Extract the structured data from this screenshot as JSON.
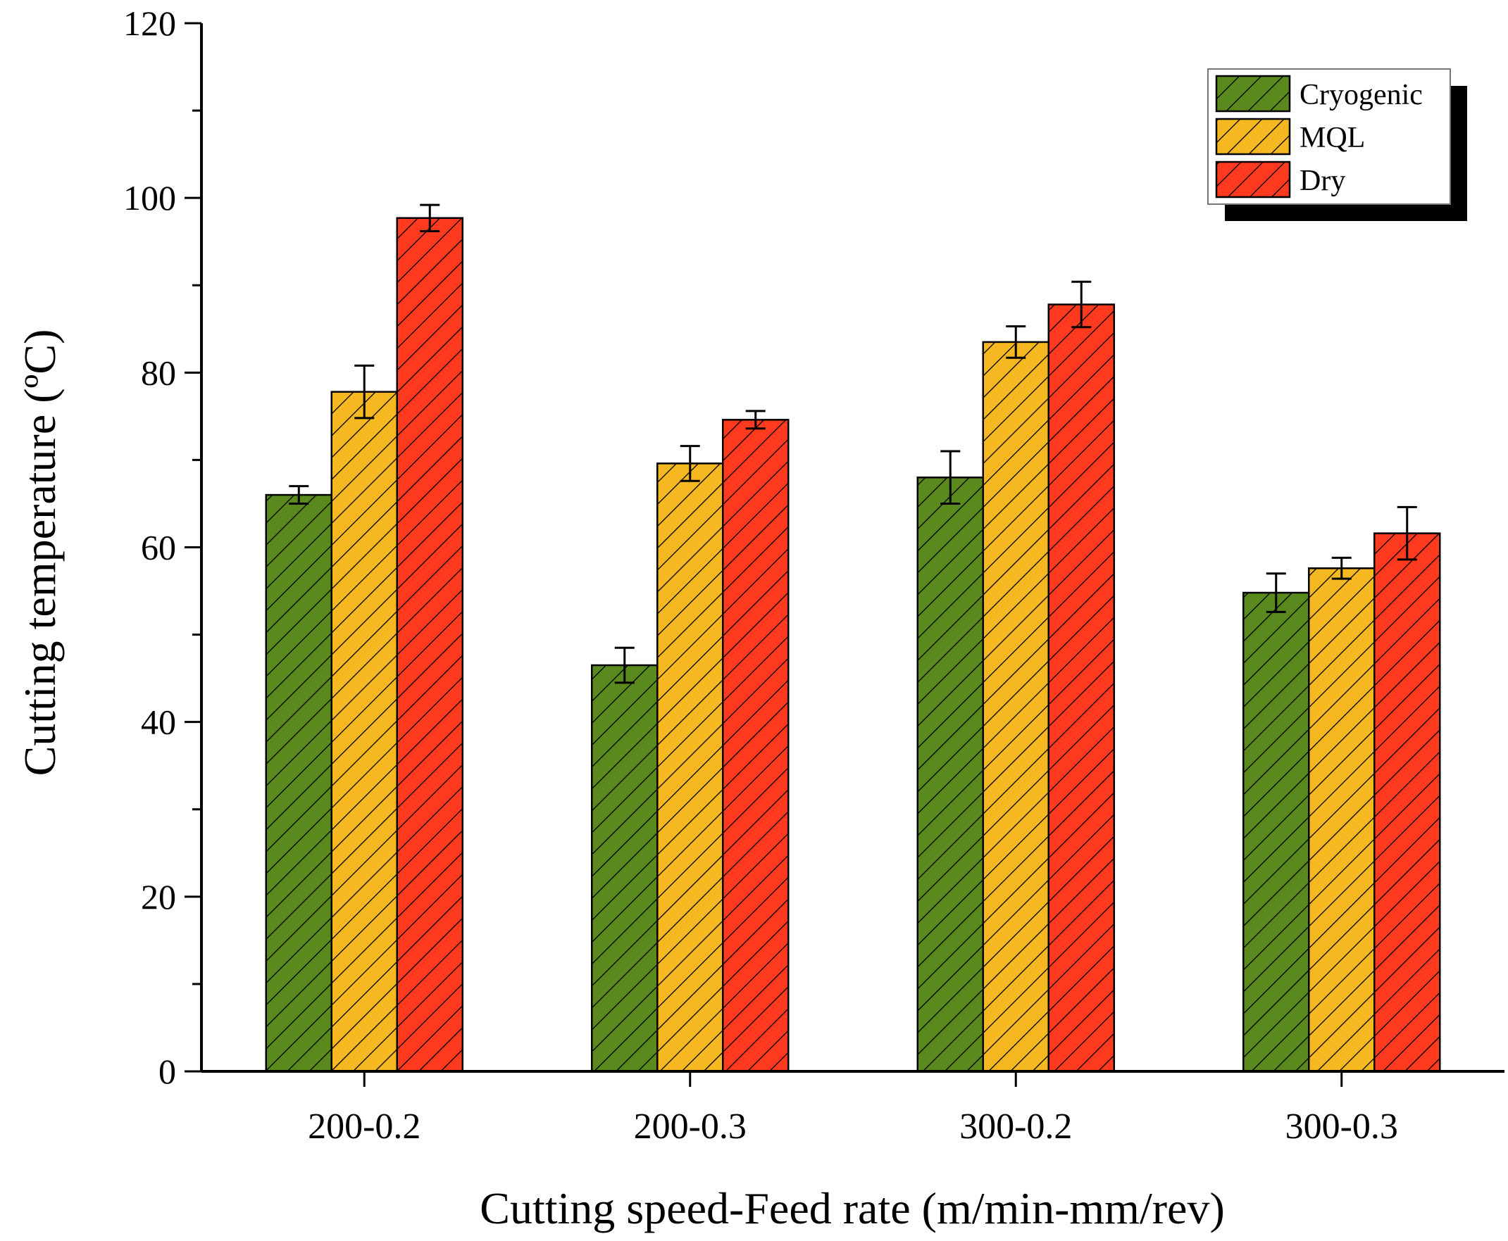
{
  "chart_data": {
    "type": "bar",
    "xlabel": "Cutting speed-Feed rate (m/min-mm/rev)",
    "ylabel": "Cutting temperature (ºC)",
    "ylim": [
      0,
      120
    ],
    "yticks": [
      0,
      20,
      40,
      60,
      80,
      100,
      120
    ],
    "categories": [
      "200-0.2",
      "200-0.3",
      "300-0.2",
      "300-0.3"
    ],
    "series": [
      {
        "name": "Cryogenic",
        "color": "#5a8a1e",
        "values": [
          66.0,
          46.5,
          68.0,
          54.8
        ],
        "errors": [
          1.0,
          2.0,
          3.0,
          2.2
        ]
      },
      {
        "name": "MQL",
        "color": "#f5b820",
        "values": [
          77.8,
          69.6,
          83.5,
          57.6
        ],
        "errors": [
          3.0,
          2.0,
          1.8,
          1.2
        ]
      },
      {
        "name": "Dry",
        "color": "#ff3a1e",
        "values": [
          97.7,
          74.6,
          87.8,
          61.6
        ],
        "errors": [
          1.5,
          1.0,
          2.6,
          3.0
        ]
      }
    ],
    "legend_position": "top-right",
    "grid": false
  }
}
